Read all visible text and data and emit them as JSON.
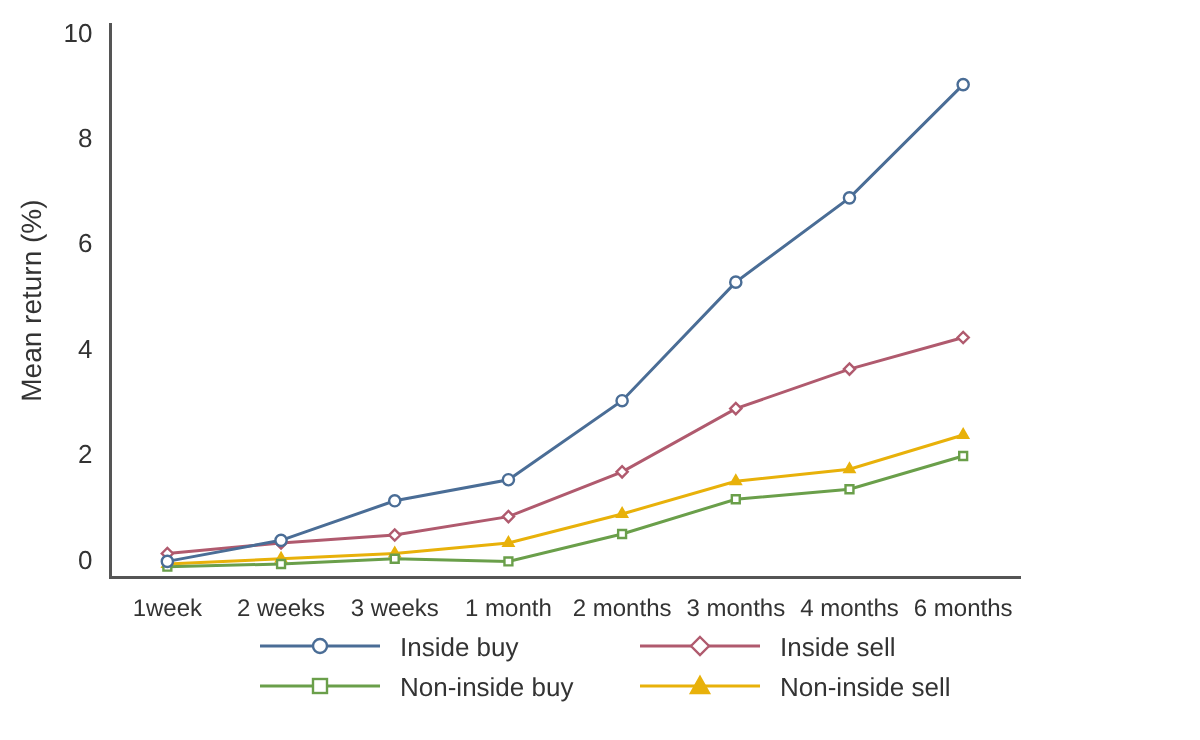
{
  "chart_data": {
    "type": "line",
    "ylabel": "Mean return (%)",
    "categories": [
      "1week",
      "2 weeks",
      "3 weeks",
      "1 month",
      "2 months",
      "3 months",
      "4 months",
      "6 months"
    ],
    "series": [
      {
        "name": "Inside buy",
        "color": "#4a6d96",
        "marker": "circle",
        "values": [
          0.0,
          0.4,
          1.15,
          1.55,
          3.05,
          5.3,
          6.9,
          9.05
        ]
      },
      {
        "name": "Inside sell",
        "color": "#b05a6e",
        "marker": "diamond",
        "values": [
          0.15,
          0.35,
          0.5,
          0.85,
          1.7,
          2.9,
          3.65,
          4.25
        ]
      },
      {
        "name": "Non-inside buy",
        "color": "#6a9f4a",
        "marker": "square",
        "values": [
          -0.1,
          -0.05,
          0.05,
          0.0,
          0.52,
          1.18,
          1.37,
          2.0
        ]
      },
      {
        "name": "Non-inside sell",
        "color": "#e8b10a",
        "marker": "triangle",
        "values": [
          -0.05,
          0.05,
          0.15,
          0.35,
          0.9,
          1.52,
          1.75,
          2.4
        ]
      }
    ],
    "ylim": [
      -0.3,
      10.2
    ],
    "yticks": [
      0,
      2,
      4,
      6,
      8,
      10
    ],
    "grid": false,
    "legend": "bottom"
  }
}
